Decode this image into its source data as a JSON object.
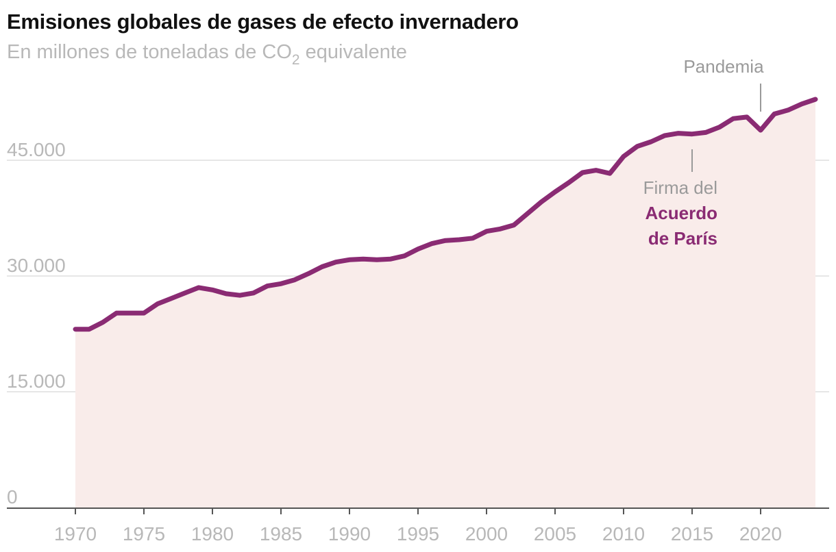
{
  "colors": {
    "line": "#8a2b73",
    "area": "#f9ecea",
    "grid": "#dedede",
    "axis": "#555555",
    "tick_text": "#b8b8b8",
    "annotation_text": "#9a9a9a"
  },
  "chart_data": {
    "type": "area",
    "title": "Emisiones globales de gases de efecto invernadero",
    "subtitle_main": "En millones de toneladas de CO",
    "subtitle_sub": "2",
    "subtitle_end": " equivalente",
    "xlabel": "",
    "ylabel": "",
    "xlim": [
      1965,
      2025
    ],
    "ylim": [
      0,
      50000
    ],
    "grid": true,
    "yticks": [
      0,
      15000,
      30000,
      45000
    ],
    "ytick_labels": [
      "0",
      "15.000",
      "30.000",
      "45.000"
    ],
    "xticks": [
      1970,
      1975,
      1980,
      1985,
      1990,
      1995,
      2000,
      2005,
      2010,
      2015,
      2020
    ],
    "xtick_labels": [
      "1970",
      "1975",
      "1980",
      "1985",
      "1990",
      "1995",
      "2000",
      "2005",
      "2010",
      "2015",
      "2020"
    ],
    "series": [
      {
        "name": "Emisiones globales",
        "x": [
          1970,
          1971,
          1972,
          1973,
          1974,
          1975,
          1976,
          1977,
          1978,
          1979,
          1980,
          1981,
          1982,
          1983,
          1984,
          1985,
          1986,
          1987,
          1988,
          1989,
          1990,
          1991,
          1992,
          1993,
          1994,
          1995,
          1996,
          1997,
          1998,
          1999,
          2000,
          2001,
          2002,
          2003,
          2004,
          2005,
          2006,
          2007,
          2008,
          2009,
          2010,
          2011,
          2012,
          2013,
          2014,
          2015,
          2016,
          2017,
          2018,
          2019,
          2020,
          2021,
          2022,
          2023,
          2024
        ],
        "values": [
          23100,
          23100,
          24000,
          25200,
          25200,
          25200,
          26400,
          27100,
          27800,
          28500,
          28200,
          27700,
          27500,
          27800,
          28700,
          29000,
          29500,
          30300,
          31200,
          31800,
          32100,
          32200,
          32100,
          32200,
          32600,
          33500,
          34200,
          34600,
          34700,
          34900,
          35800,
          36100,
          36600,
          38100,
          39600,
          40900,
          42100,
          43400,
          43700,
          43300,
          45500,
          46800,
          47400,
          48200,
          48500,
          48400,
          48600,
          49300,
          50400,
          50600,
          48900,
          51000,
          51500,
          52300,
          52900
        ]
      }
    ],
    "annotations": [
      {
        "label": "Pandemia",
        "x": 2020
      },
      {
        "label_line1": "Firma del",
        "label_line2": "Acuerdo",
        "label_line3": "de París",
        "x": 2015
      }
    ]
  }
}
